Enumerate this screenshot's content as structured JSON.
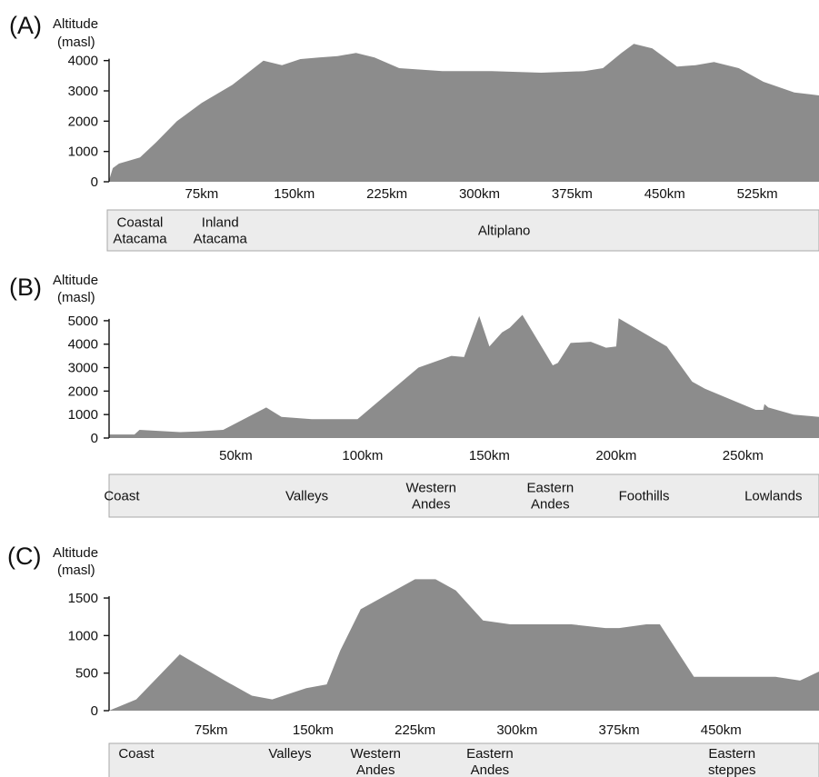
{
  "chart_data": [
    {
      "type": "area",
      "panel_label": "(A)",
      "ylabel": [
        "Altitude",
        "(masl)"
      ],
      "ylim": [
        0,
        4800
      ],
      "y_ticks": [
        0,
        1000,
        2000,
        3000,
        4000
      ],
      "xlim": [
        0,
        575
      ],
      "x_ticks": [
        {
          "value": 75,
          "label": "75km"
        },
        {
          "value": 150,
          "label": "150km"
        },
        {
          "value": 225,
          "label": "225km"
        },
        {
          "value": 300,
          "label": "300km"
        },
        {
          "value": 375,
          "label": "375km"
        },
        {
          "value": 450,
          "label": "450km"
        },
        {
          "value": 525,
          "label": "525km"
        }
      ],
      "grid": false,
      "profile": {
        "x": [
          0,
          3,
          8,
          15,
          25,
          38,
          55,
          75,
          100,
          125,
          140,
          155,
          170,
          185,
          200,
          215,
          235,
          270,
          310,
          350,
          385,
          400,
          415,
          425,
          440,
          460,
          475,
          490,
          510,
          530,
          555,
          575
        ],
        "y": [
          50,
          450,
          600,
          680,
          800,
          1300,
          2000,
          2600,
          3200,
          4000,
          3850,
          4050,
          4100,
          4150,
          4250,
          4100,
          3750,
          3650,
          3650,
          3600,
          3650,
          3750,
          4250,
          4550,
          4400,
          3800,
          3850,
          3950,
          3750,
          3300,
          2950,
          2850
        ]
      },
      "regions": [
        {
          "lines": [
            "Coastal",
            "Atacama"
          ],
          "x": 25
        },
        {
          "lines": [
            "Inland",
            "Atacama"
          ],
          "x": 90
        },
        {
          "lines": [
            "Altiplano"
          ],
          "x": 320
        }
      ]
    },
    {
      "type": "area",
      "panel_label": "(B)",
      "ylabel": [
        "Altitude",
        "(masl)"
      ],
      "ylim": [
        0,
        5500
      ],
      "y_ticks": [
        0,
        1000,
        2000,
        3000,
        4000,
        5000
      ],
      "xlim": [
        0,
        280
      ],
      "x_ticks": [
        {
          "value": 50,
          "label": "50km"
        },
        {
          "value": 100,
          "label": "100km"
        },
        {
          "value": 150,
          "label": "150km"
        },
        {
          "value": 200,
          "label": "200km"
        },
        {
          "value": 250,
          "label": "250km"
        }
      ],
      "grid": false,
      "profile": {
        "x": [
          0,
          10,
          12,
          20,
          28,
          35,
          45,
          62,
          68,
          80,
          92,
          98,
          110,
          122,
          135,
          140,
          146,
          150,
          155,
          158,
          163,
          175,
          177,
          182,
          190,
          196,
          200,
          201,
          220,
          230,
          235,
          255,
          258,
          258.5,
          260,
          270,
          280
        ],
        "y": [
          150,
          150,
          350,
          300,
          250,
          280,
          350,
          1300,
          900,
          800,
          800,
          800,
          1900,
          3000,
          3500,
          3450,
          5200,
          3900,
          4500,
          4700,
          5250,
          3100,
          3200,
          4050,
          4100,
          3850,
          3900,
          5100,
          3900,
          2400,
          2100,
          1200,
          1200,
          1450,
          1300,
          1000,
          900
        ]
      },
      "regions": [
        {
          "lines": [
            "Coast"
          ],
          "x": 5
        },
        {
          "lines": [
            "Valleys"
          ],
          "x": 78
        },
        {
          "lines": [
            "Western",
            "Andes"
          ],
          "x": 127
        },
        {
          "lines": [
            "Eastern",
            "Andes"
          ],
          "x": 174
        },
        {
          "lines": [
            "Foothills"
          ],
          "x": 211
        },
        {
          "lines": [
            "Lowlands"
          ],
          "x": 262
        }
      ]
    },
    {
      "type": "area",
      "panel_label": "(C)",
      "ylabel": [
        "Altitude",
        "(masl)"
      ],
      "ylim": [
        0,
        1900
      ],
      "y_ticks": [
        0,
        500,
        1000,
        1500
      ],
      "xlim": [
        0,
        522
      ],
      "x_ticks": [
        {
          "value": 75,
          "label": "75km"
        },
        {
          "value": 150,
          "label": "150km"
        },
        {
          "value": 225,
          "label": "225km"
        },
        {
          "value": 300,
          "label": "300km"
        },
        {
          "value": 375,
          "label": "375km"
        },
        {
          "value": 450,
          "label": "450km"
        }
      ],
      "grid": false,
      "profile": {
        "x": [
          0,
          20,
          52,
          85,
          105,
          120,
          145,
          160,
          170,
          185,
          205,
          225,
          240,
          255,
          275,
          295,
          310,
          340,
          365,
          375,
          395,
          405,
          430,
          475,
          490,
          508,
          522
        ],
        "y": [
          0,
          150,
          750,
          400,
          200,
          150,
          300,
          350,
          800,
          1350,
          1550,
          1750,
          1750,
          1600,
          1200,
          1150,
          1150,
          1150,
          1100,
          1100,
          1150,
          1150,
          450,
          450,
          450,
          400,
          520
        ]
      },
      "regions": [
        {
          "lines": [
            "Coast"
          ],
          "x": 20
        },
        {
          "lines": [
            "Valleys"
          ],
          "x": 133
        },
        {
          "lines": [
            "Western",
            "Andes"
          ],
          "x": 196
        },
        {
          "lines": [
            "Eastern",
            "Andes"
          ],
          "x": 280
        },
        {
          "lines": [
            "Eastern",
            "steppes"
          ],
          "x": 458
        }
      ]
    }
  ]
}
